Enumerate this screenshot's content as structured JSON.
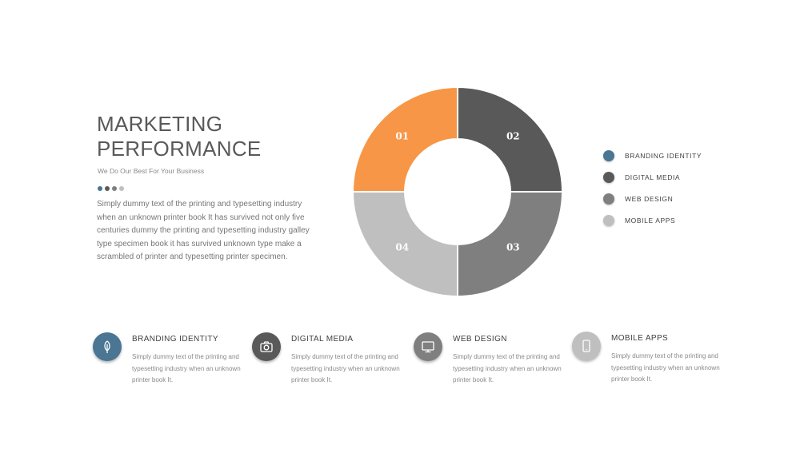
{
  "header": {
    "title_line1": "MARKETING",
    "title_line2": "PERFORMANCE",
    "subtitle": "We Do Our Best For Your Business",
    "dot_colors": [
      "#4a7593",
      "#595959",
      "#7f7f7f",
      "#bfbfbf"
    ]
  },
  "description": "Simply dummy text of the printing and typesetting industry when an unknown printer book It has survived not only five centuries dummy  the printing and typesetting industry galley type specimen book it has survived unknown type make a scrambled of printer and typesetting printer specimen.",
  "chart_data": {
    "type": "pie",
    "donut": true,
    "segments": [
      {
        "label": "01",
        "value": 25,
        "color": "#f79646"
      },
      {
        "label": "02",
        "value": 25,
        "color": "#595959"
      },
      {
        "label": "03",
        "value": 25,
        "color": "#7f7f7f"
      },
      {
        "label": "04",
        "value": 25,
        "color": "#bfbfbf"
      }
    ]
  },
  "legend": [
    {
      "label": "BRANDING  IDENTITY",
      "color": "#4a7593"
    },
    {
      "label": "DIGITAL MEDIA",
      "color": "#595959"
    },
    {
      "label": "WEB DESIGN",
      "color": "#7f7f7f"
    },
    {
      "label": "MOBILE APPS",
      "color": "#bfbfbf"
    }
  ],
  "features": [
    {
      "title": "BRANDING  IDENTITY",
      "text": "Simply dummy text of the printing and typesetting  industry when an unknown printer book It.",
      "icon": "leaf-icon",
      "color": "#4a7593"
    },
    {
      "title": "DIGITAL MEDIA",
      "text": "Simply dummy text of the printing and typesetting  industry when an unknown printer book It.",
      "icon": "camera-icon",
      "color": "#595959"
    },
    {
      "title": "WEB DESIGN",
      "text": "Simply dummy text of the printing and typesetting  industry when an unknown printer book It.",
      "icon": "monitor-icon",
      "color": "#7f7f7f"
    },
    {
      "title": "MOBILE APPS",
      "text": "Simply dummy text of the printing and typesetting  industry when an unknown printer book It.",
      "icon": "mobile-phone-icon",
      "color": "#bfbfbf"
    }
  ]
}
